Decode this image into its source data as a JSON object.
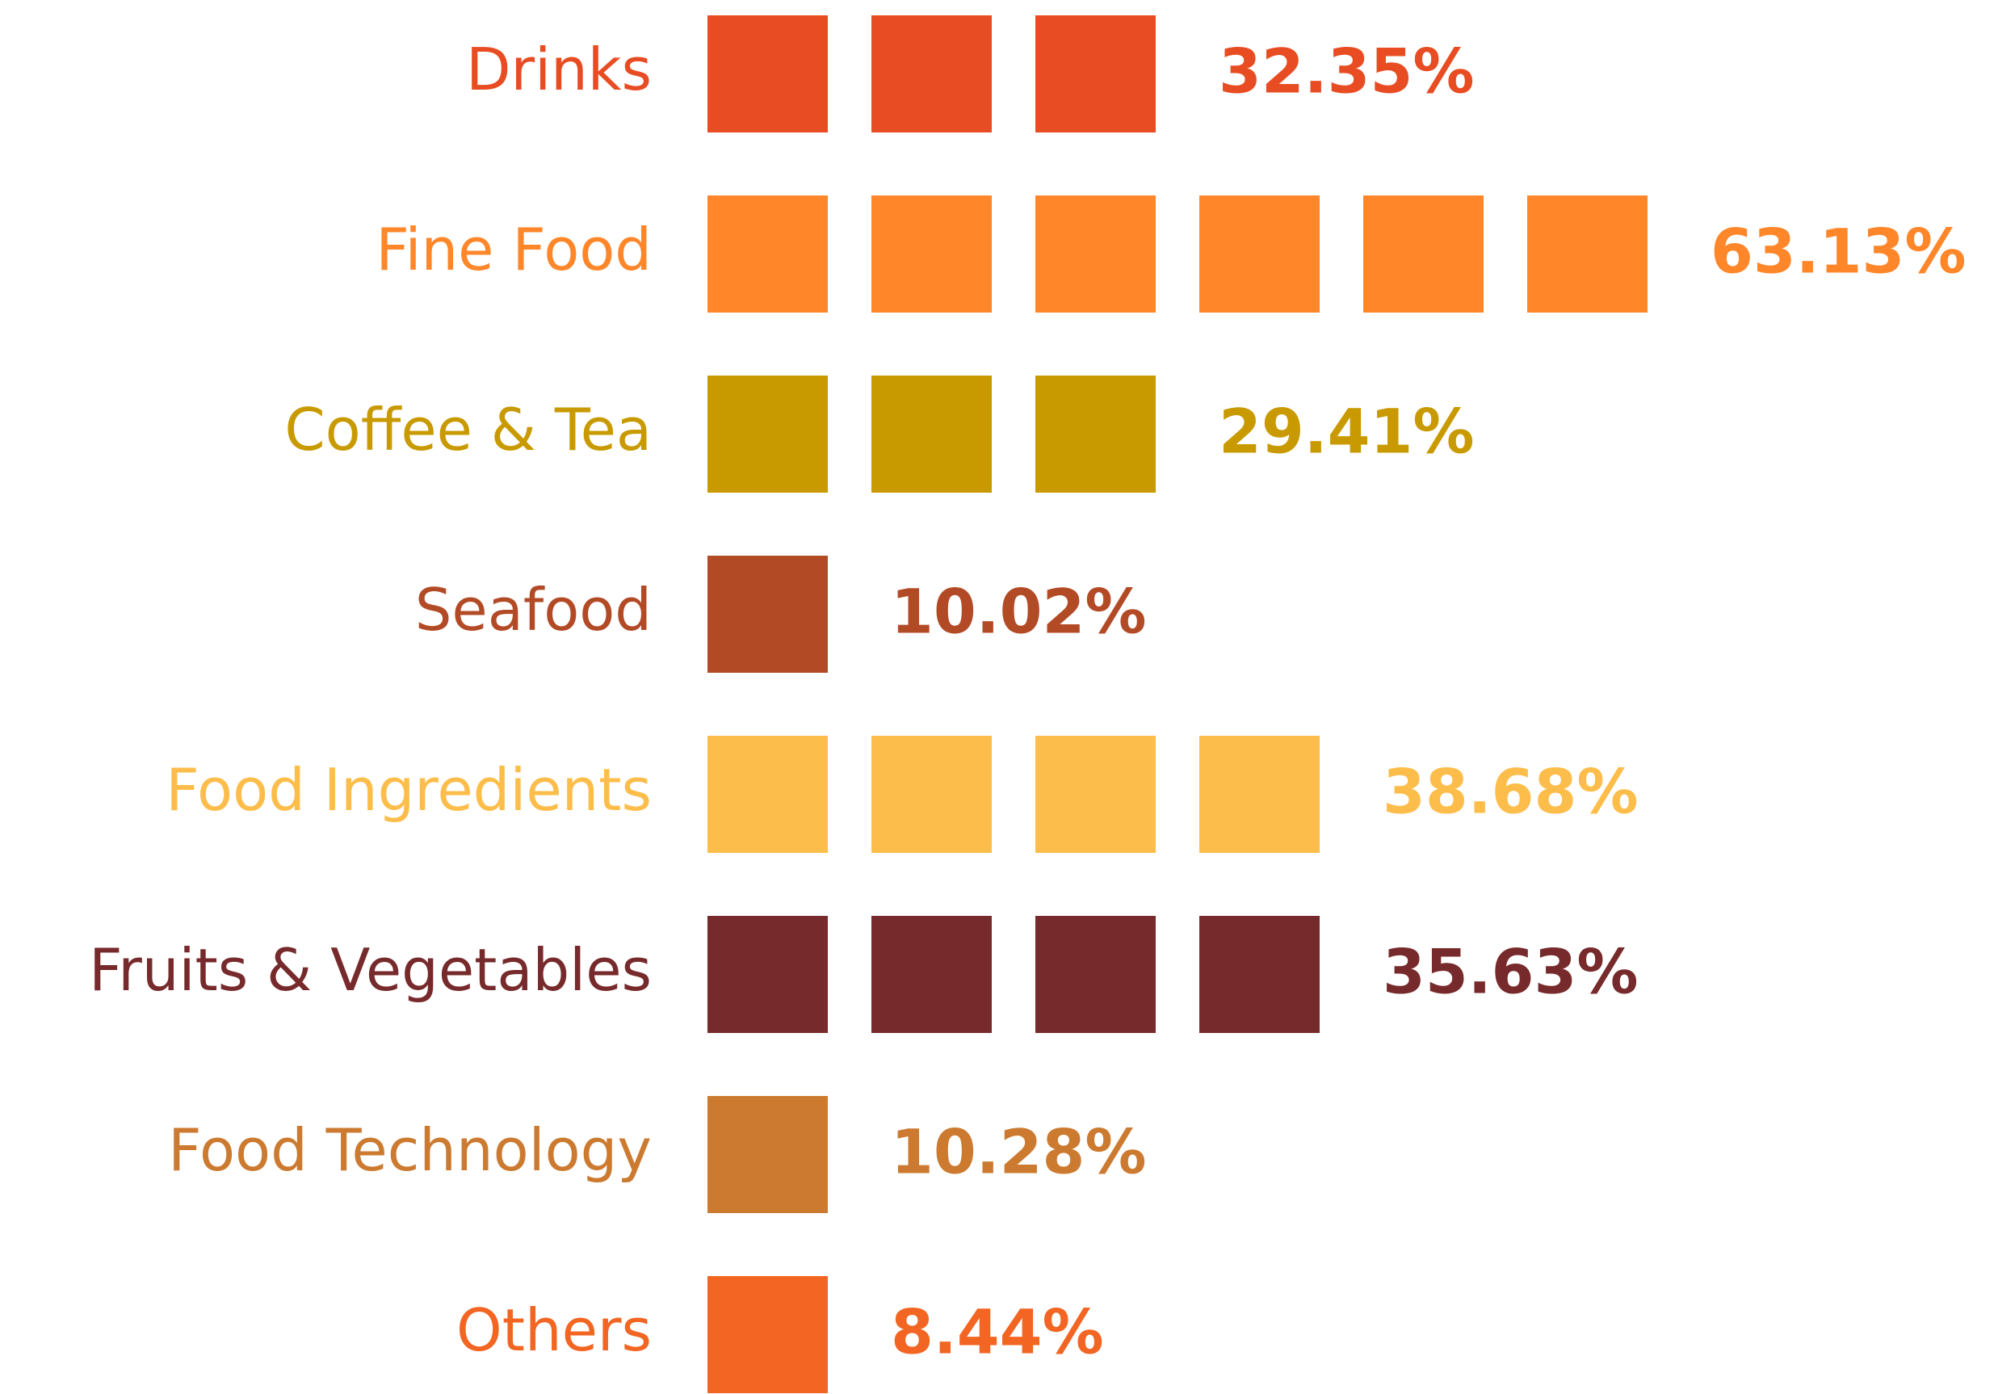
{
  "chart_data": {
    "type": "pictogram",
    "categories": [
      "Drinks",
      "Fine Food",
      "Coffee & Tea",
      "Seafood",
      "Food Ingredients",
      "Fruits & Vegetables",
      "Food Technology",
      "Others"
    ],
    "values": [
      32.35,
      63.13,
      29.41,
      10.02,
      38.68,
      35.63,
      10.28,
      8.44
    ],
    "value_labels": [
      "32.35%",
      "63.13%",
      "29.41%",
      "10.02%",
      "38.68%",
      "35.63%",
      "10.28%",
      "8.44%"
    ],
    "colors": [
      "#e84c22",
      "#ff8629",
      "#c99a00",
      "#b34a26",
      "#fdbd4a",
      "#772a2b",
      "#cc7a30",
      "#f26522"
    ]
  }
}
